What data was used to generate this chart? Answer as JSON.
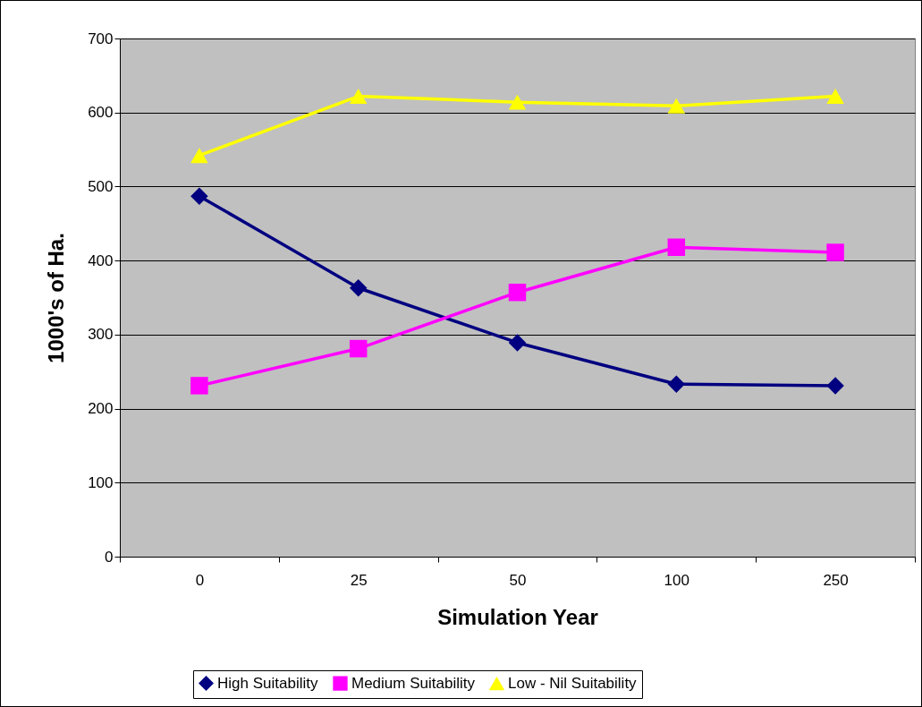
{
  "chart_data": {
    "type": "line",
    "xlabel": "Simulation Year",
    "ylabel": "1000's of Ha.",
    "categories": [
      "0",
      "25",
      "50",
      "100",
      "250"
    ],
    "series": [
      {
        "name": "High Suitability",
        "color": "#000080",
        "marker": "diamond",
        "values": [
          487,
          363,
          289,
          233,
          231
        ]
      },
      {
        "name": "Medium Suitability",
        "color": "#ff00ff",
        "marker": "square",
        "values": [
          231,
          281,
          357,
          418,
          411
        ]
      },
      {
        "name": "Low - Nil Suitability",
        "color": "#ffff00",
        "marker": "triangle",
        "values": [
          542,
          622,
          614,
          609,
          622
        ]
      }
    ],
    "ylim": [
      0,
      700
    ],
    "yticks": [
      0,
      100,
      200,
      300,
      400,
      500,
      600,
      700
    ],
    "grid": "y",
    "legend": "bottom",
    "line_style": "solid"
  }
}
